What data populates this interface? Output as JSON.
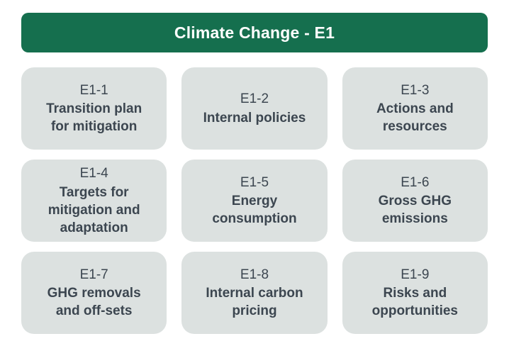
{
  "header": {
    "title": "Climate Change - E1"
  },
  "cards": [
    {
      "code": "E1-1",
      "title": "Transition plan\nfor mitigation"
    },
    {
      "code": "E1-2",
      "title": "Internal policies"
    },
    {
      "code": "E1-3",
      "title": "Actions and\nresources"
    },
    {
      "code": "E1-4",
      "title": "Targets for\nmitigation and\nadaptation"
    },
    {
      "code": "E1-5",
      "title": "Energy\nconsumption"
    },
    {
      "code": "E1-6",
      "title": "Gross GHG\nemissions"
    },
    {
      "code": "E1-7",
      "title": "GHG removals\nand off-sets"
    },
    {
      "code": "E1-8",
      "title": "Internal carbon\npricing"
    },
    {
      "code": "E1-9",
      "title": "Risks and\nopportunities"
    }
  ],
  "colors": {
    "header_bg": "#156f4e",
    "header_text": "#ffffff",
    "card_bg": "#dce1e0",
    "card_text": "#3c4650",
    "page_bg": "#ffffff"
  }
}
